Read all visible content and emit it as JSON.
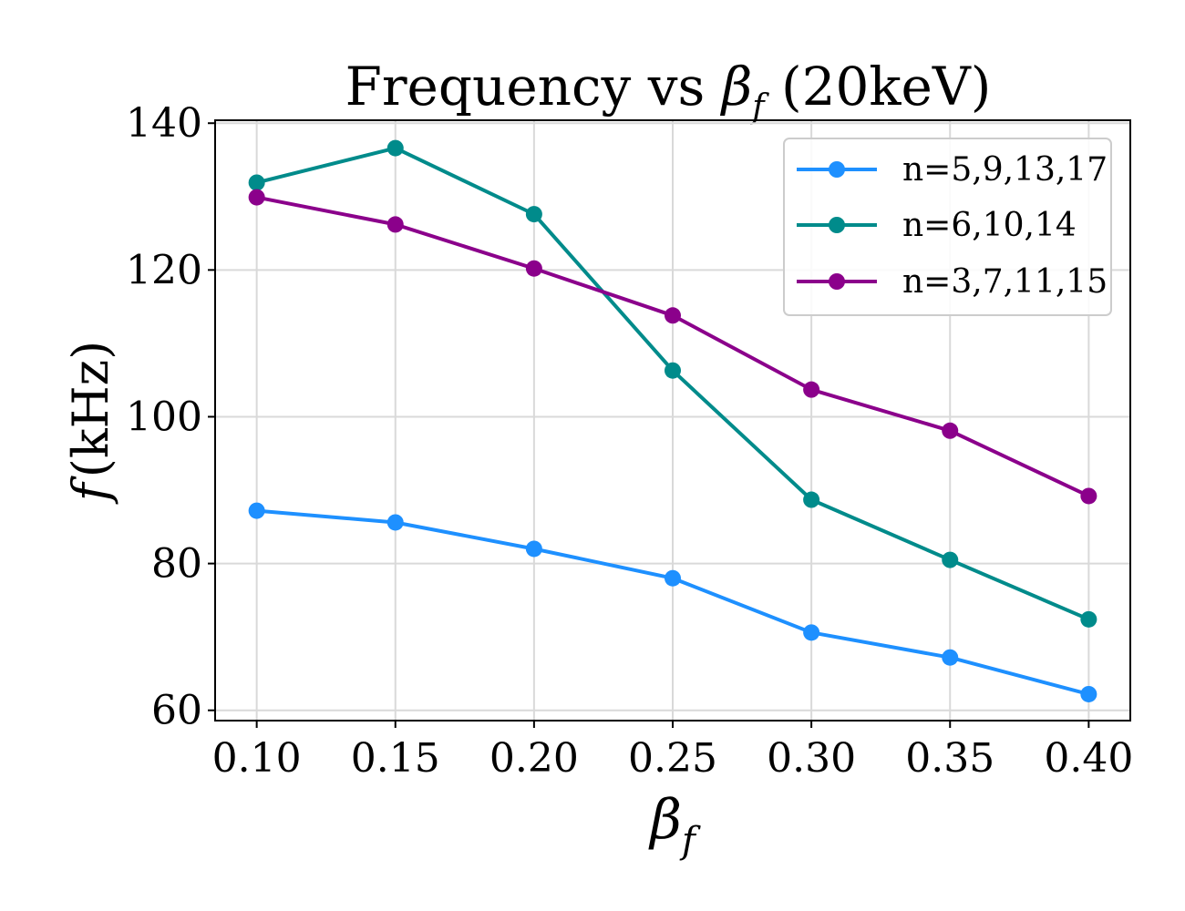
{
  "chart_data": {
    "type": "line",
    "title": "Frequency vs β_f (20keV)",
    "title_main": "Frequency vs ",
    "title_symbol": "β",
    "title_subscript": "f",
    "title_tail": " (20keV)",
    "xlabel_symbol": "β",
    "xlabel_subscript": "f",
    "ylabel": "f (kHz)",
    "ylabel_symbol": "f",
    "ylabel_unit": "(kHz)",
    "x": [
      0.1,
      0.15,
      0.2,
      0.25,
      0.3,
      0.35,
      0.4
    ],
    "x_tick_labels": [
      "0.10",
      "0.15",
      "0.20",
      "0.25",
      "0.30",
      "0.35",
      "0.40"
    ],
    "y_ticks": [
      60,
      80,
      100,
      120,
      140
    ],
    "y_tick_labels": [
      "60",
      "80",
      "100",
      "120",
      "140"
    ],
    "xlim": [
      0.085,
      0.415
    ],
    "ylim": [
      58.6,
      140.4
    ],
    "grid": true,
    "legend_position": "top-right",
    "series": [
      {
        "name": "n=5,9,13,17",
        "color": "#1e90ff",
        "values": [
          87.2,
          85.6,
          82.0,
          78.0,
          70.6,
          67.2,
          62.2
        ]
      },
      {
        "name": "n=6,10,14",
        "color": "#008b8b",
        "values": [
          131.9,
          136.6,
          127.6,
          106.3,
          88.7,
          80.5,
          72.4
        ]
      },
      {
        "name": "n=3,7,11,15",
        "color": "#8b008b",
        "values": [
          129.9,
          126.2,
          120.2,
          113.8,
          103.7,
          98.1,
          89.2
        ]
      }
    ]
  }
}
